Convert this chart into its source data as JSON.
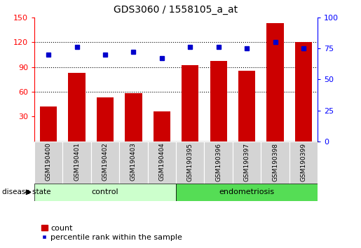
{
  "title": "GDS3060 / 1558105_a_at",
  "samples": [
    "GSM190400",
    "GSM190401",
    "GSM190402",
    "GSM190403",
    "GSM190404",
    "GSM190395",
    "GSM190396",
    "GSM190397",
    "GSM190398",
    "GSM190399"
  ],
  "counts": [
    42,
    83,
    53,
    58,
    36,
    92,
    97,
    85,
    143,
    120
  ],
  "percentile": [
    70,
    76,
    70,
    72,
    67,
    76,
    76,
    75,
    80,
    75
  ],
  "bar_color": "#cc0000",
  "dot_color": "#0000cc",
  "ylim_left": [
    0,
    150
  ],
  "ylim_right": [
    0,
    100
  ],
  "yticks_left": [
    30,
    60,
    90,
    120,
    150
  ],
  "yticks_right": [
    0,
    25,
    50,
    75,
    100
  ],
  "legend_count_label": "count",
  "legend_pct_label": "percentile rank within the sample",
  "disease_state_label": "disease state",
  "control_color_light": "#ccffcc",
  "control_color": "#ccffcc",
  "endometriosis_color": "#55dd55",
  "background_color": "#ffffff",
  "group_info": [
    {
      "label": "control",
      "start": 0,
      "end": 4,
      "color": "#ccffcc"
    },
    {
      "label": "endometriosis",
      "start": 5,
      "end": 9,
      "color": "#55dd55"
    }
  ]
}
